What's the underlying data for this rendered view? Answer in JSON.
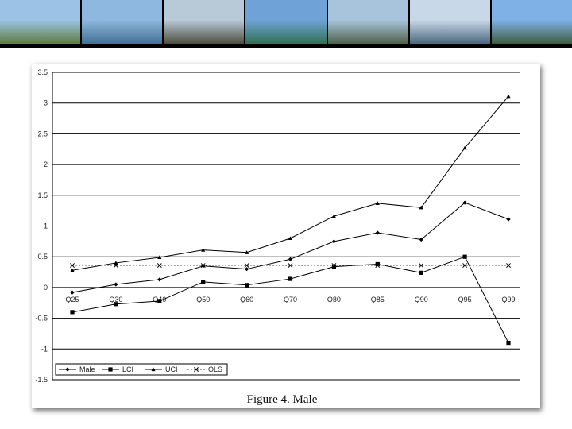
{
  "banner": {
    "photos": [
      {
        "name": "hilltop-town-photo",
        "sky": "#9cc3e6",
        "ground": "#5b7a3a"
      },
      {
        "name": "lake-bay-photo",
        "sky": "#8fb8e0",
        "ground": "#3f6f8f"
      },
      {
        "name": "lakeside-promenade-photo",
        "sky": "#b8c9d8",
        "ground": "#4a4a3a"
      },
      {
        "name": "lake-mountain-photo",
        "sky": "#6fa3d8",
        "ground": "#2f6f4f"
      },
      {
        "name": "mountain-lake-view-photo",
        "sky": "#a8c4dc",
        "ground": "#4b5f46"
      },
      {
        "name": "cloudy-lake-photo",
        "sky": "#c8d8e8",
        "ground": "#46647a"
      },
      {
        "name": "palm-promenade-photo",
        "sky": "#7fb0e6",
        "ground": "#3b5a3b"
      }
    ]
  },
  "caption": "Figure 4.  Male",
  "chart_data": {
    "type": "line",
    "categories": [
      "Q25",
      "Q30",
      "Q40",
      "Q50",
      "Q60",
      "Q70",
      "Q80",
      "Q85",
      "Q90",
      "Q95",
      "Q99"
    ],
    "ylim": [
      -1.5,
      3.5
    ],
    "yticks": [
      3.5,
      3,
      2.5,
      2,
      1.5,
      1,
      0.5,
      0,
      -0.5,
      -1,
      -1.5
    ],
    "ytick_labels": [
      "3.5",
      "3",
      "2.5",
      "2",
      "1.5",
      "1",
      "0.5",
      "0",
      "-0.5",
      "-1",
      "-1.5"
    ],
    "grid": true,
    "legend_position": "bottom-left",
    "series": [
      {
        "name": "Male",
        "marker": "diamond",
        "dash": "solid",
        "values": [
          -0.08,
          0.05,
          0.13,
          0.35,
          0.3,
          0.46,
          0.75,
          0.89,
          0.78,
          1.38,
          1.11
        ]
      },
      {
        "name": "LCI",
        "marker": "square",
        "dash": "solid",
        "values": [
          -0.4,
          -0.27,
          -0.22,
          0.09,
          0.04,
          0.14,
          0.34,
          0.38,
          0.24,
          0.5,
          -0.9
        ]
      },
      {
        "name": "UCI",
        "marker": "triangle",
        "dash": "solid",
        "values": [
          0.28,
          0.4,
          0.49,
          0.61,
          0.57,
          0.8,
          1.16,
          1.37,
          1.3,
          2.27,
          3.11
        ]
      },
      {
        "name": "OLS",
        "marker": "x",
        "dash": "dotted",
        "values": [
          0.36,
          0.36,
          0.36,
          0.36,
          0.36,
          0.36,
          0.36,
          0.36,
          0.36,
          0.36,
          0.36
        ]
      }
    ]
  }
}
